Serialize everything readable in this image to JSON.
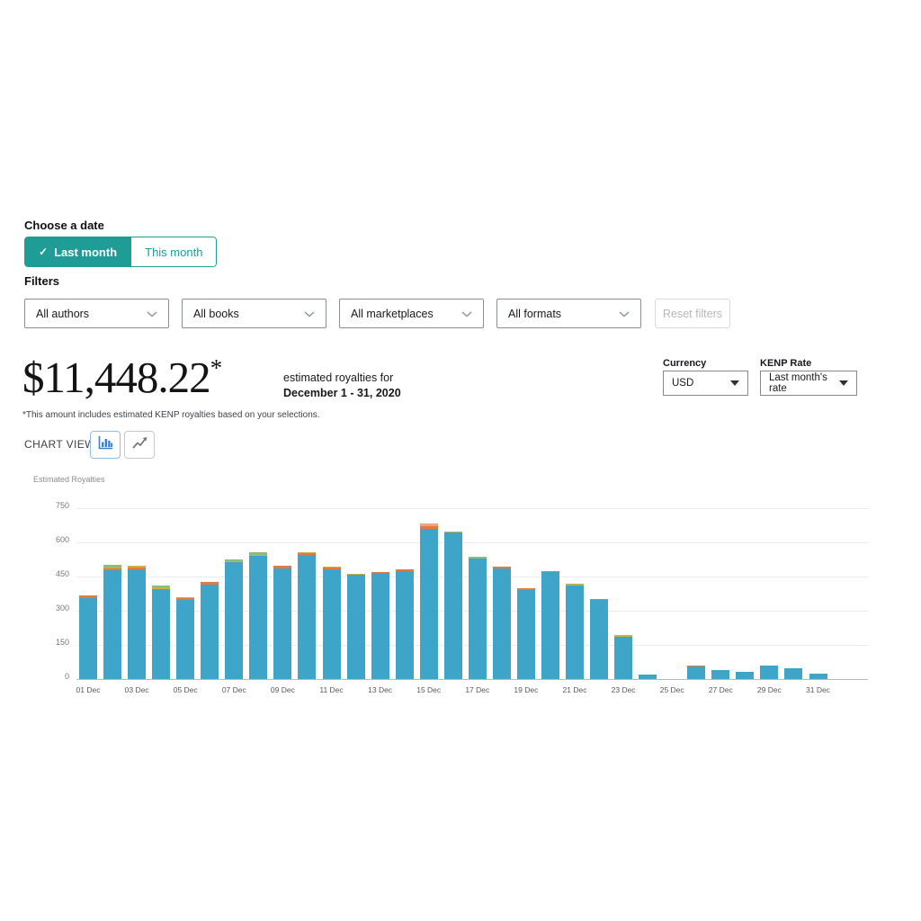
{
  "date_picker": {
    "label": "Choose a date",
    "buttons": [
      {
        "label": "Last month",
        "check": "✓",
        "selected": true
      },
      {
        "label": "This month",
        "selected": false
      }
    ]
  },
  "filters": {
    "label": "Filters",
    "dropdowns": [
      "All authors",
      "All books",
      "All marketplaces",
      "All formats"
    ],
    "reset_label": "Reset filters"
  },
  "summary": {
    "amount": "$11,448.22",
    "asterisk": "*",
    "caption_line1": "estimated royalties for",
    "caption_line2": "December 1 - 31, 2020",
    "footnote": "*This amount includes estimated KENP royalties based on your selections."
  },
  "settings": {
    "currency_label": "Currency",
    "currency_value": "USD",
    "kenp_label": "KENP Rate",
    "kenp_value": "Last month's rate"
  },
  "chart_toolbar": {
    "label": "CHART VIEW",
    "buttons": [
      {
        "icon": "bar-chart-icon",
        "selected": true
      },
      {
        "icon": "line-chart-icon",
        "selected": false
      }
    ],
    "accent_blue": "#3d7fc8",
    "icon_gray": "#70767b"
  },
  "chart_data": {
    "type": "bar",
    "stacked": true,
    "title": "Estimated Royalties",
    "xlabel": "",
    "ylabel": "Estimated Royalties",
    "ylim": [
      0,
      750
    ],
    "y_ticks": [
      0,
      150,
      300,
      450,
      600,
      750
    ],
    "grid": true,
    "legend": "none",
    "series_colors": {
      "blue": "#3EA5C9",
      "orange": "#E5793F",
      "salmon": "#F2A47E",
      "yellow": "#C9B23F",
      "green": "#8FBC77"
    },
    "categories": [
      "01 Dec",
      "02 Dec",
      "03 Dec",
      "04 Dec",
      "05 Dec",
      "06 Dec",
      "07 Dec",
      "08 Dec",
      "09 Dec",
      "10 Dec",
      "11 Dec",
      "12 Dec",
      "13 Dec",
      "14 Dec",
      "15 Dec",
      "16 Dec",
      "17 Dec",
      "18 Dec",
      "19 Dec",
      "20 Dec",
      "21 Dec",
      "22 Dec",
      "23 Dec",
      "24 Dec",
      "25 Dec",
      "26 Dec",
      "27 Dec",
      "28 Dec",
      "29 Dec",
      "30 Dec",
      "31 Dec"
    ],
    "x_tick_labels": [
      "01 Dec",
      "03 Dec",
      "05 Dec",
      "07 Dec",
      "09 Dec",
      "11 Dec",
      "13 Dec",
      "15 Dec",
      "17 Dec",
      "19 Dec",
      "21 Dec",
      "23 Dec",
      "25 Dec",
      "27 Dec",
      "29 Dec",
      "31 Dec"
    ],
    "bars": [
      {
        "day": "01 Dec",
        "total": 368,
        "segments": [
          [
            "blue",
            356
          ],
          [
            "orange",
            12
          ]
        ]
      },
      {
        "day": "02 Dec",
        "total": 503,
        "segments": [
          [
            "blue",
            478
          ],
          [
            "orange",
            8
          ],
          [
            "yellow",
            5
          ],
          [
            "green",
            12
          ]
        ]
      },
      {
        "day": "03 Dec",
        "total": 496,
        "segments": [
          [
            "blue",
            480
          ],
          [
            "orange",
            10
          ],
          [
            "yellow",
            6
          ]
        ]
      },
      {
        "day": "04 Dec",
        "total": 411,
        "segments": [
          [
            "blue",
            396
          ],
          [
            "yellow",
            5
          ],
          [
            "green",
            10
          ]
        ]
      },
      {
        "day": "05 Dec",
        "total": 358,
        "segments": [
          [
            "blue",
            346
          ],
          [
            "orange",
            8
          ],
          [
            "yellow",
            4
          ]
        ]
      },
      {
        "day": "06 Dec",
        "total": 428,
        "segments": [
          [
            "blue",
            415
          ],
          [
            "orange",
            13
          ]
        ]
      },
      {
        "day": "07 Dec",
        "total": 526,
        "segments": [
          [
            "blue",
            512
          ],
          [
            "yellow",
            4
          ],
          [
            "green",
            10
          ]
        ]
      },
      {
        "day": "08 Dec",
        "total": 556,
        "segments": [
          [
            "blue",
            542
          ],
          [
            "yellow",
            4
          ],
          [
            "green",
            10
          ]
        ]
      },
      {
        "day": "09 Dec",
        "total": 497,
        "segments": [
          [
            "blue",
            487
          ],
          [
            "orange",
            10
          ]
        ]
      },
      {
        "day": "10 Dec",
        "total": 558,
        "segments": [
          [
            "blue",
            546
          ],
          [
            "orange",
            6
          ],
          [
            "yellow",
            6
          ]
        ]
      },
      {
        "day": "11 Dec",
        "total": 493,
        "segments": [
          [
            "blue",
            482
          ],
          [
            "orange",
            6
          ],
          [
            "yellow",
            5
          ]
        ]
      },
      {
        "day": "12 Dec",
        "total": 460,
        "segments": [
          [
            "blue",
            456
          ],
          [
            "yellow",
            4
          ]
        ]
      },
      {
        "day": "13 Dec",
        "total": 468,
        "segments": [
          [
            "blue",
            464
          ],
          [
            "orange",
            4
          ]
        ]
      },
      {
        "day": "14 Dec",
        "total": 482,
        "segments": [
          [
            "blue",
            472
          ],
          [
            "orange",
            10
          ]
        ]
      },
      {
        "day": "15 Dec",
        "total": 682,
        "segments": [
          [
            "blue",
            658
          ],
          [
            "orange",
            14
          ],
          [
            "salmon",
            10
          ]
        ]
      },
      {
        "day": "16 Dec",
        "total": 648,
        "segments": [
          [
            "blue",
            642
          ],
          [
            "yellow",
            6
          ]
        ]
      },
      {
        "day": "17 Dec",
        "total": 536,
        "segments": [
          [
            "blue",
            530
          ],
          [
            "green",
            6
          ]
        ]
      },
      {
        "day": "18 Dec",
        "total": 492,
        "segments": [
          [
            "blue",
            486
          ],
          [
            "orange",
            6
          ]
        ]
      },
      {
        "day": "19 Dec",
        "total": 398,
        "segments": [
          [
            "blue",
            392
          ],
          [
            "orange",
            6
          ]
        ]
      },
      {
        "day": "20 Dec",
        "total": 473,
        "segments": [
          [
            "blue",
            468
          ],
          [
            "orange",
            5
          ]
        ]
      },
      {
        "day": "21 Dec",
        "total": 420,
        "segments": [
          [
            "blue",
            410
          ],
          [
            "yellow",
            4
          ],
          [
            "green",
            6
          ]
        ]
      },
      {
        "day": "22 Dec",
        "total": 352,
        "segments": [
          [
            "blue",
            348
          ],
          [
            "orange",
            4
          ]
        ]
      },
      {
        "day": "23 Dec",
        "total": 192,
        "segments": [
          [
            "blue",
            186
          ],
          [
            "yellow",
            6
          ]
        ]
      },
      {
        "day": "24 Dec",
        "total": 20,
        "segments": [
          [
            "blue",
            20
          ]
        ]
      },
      {
        "day": "25 Dec",
        "total": 0,
        "segments": []
      },
      {
        "day": "26 Dec",
        "total": 60,
        "segments": [
          [
            "blue",
            56
          ],
          [
            "orange",
            4
          ]
        ]
      },
      {
        "day": "27 Dec",
        "total": 38,
        "segments": [
          [
            "blue",
            38
          ]
        ]
      },
      {
        "day": "28 Dec",
        "total": 30,
        "segments": [
          [
            "blue",
            30
          ]
        ]
      },
      {
        "day": "29 Dec",
        "total": 60,
        "segments": [
          [
            "blue",
            60
          ]
        ]
      },
      {
        "day": "30 Dec",
        "total": 48,
        "segments": [
          [
            "blue",
            48
          ]
        ]
      },
      {
        "day": "31 Dec",
        "total": 24,
        "segments": [
          [
            "blue",
            24
          ]
        ]
      }
    ]
  }
}
